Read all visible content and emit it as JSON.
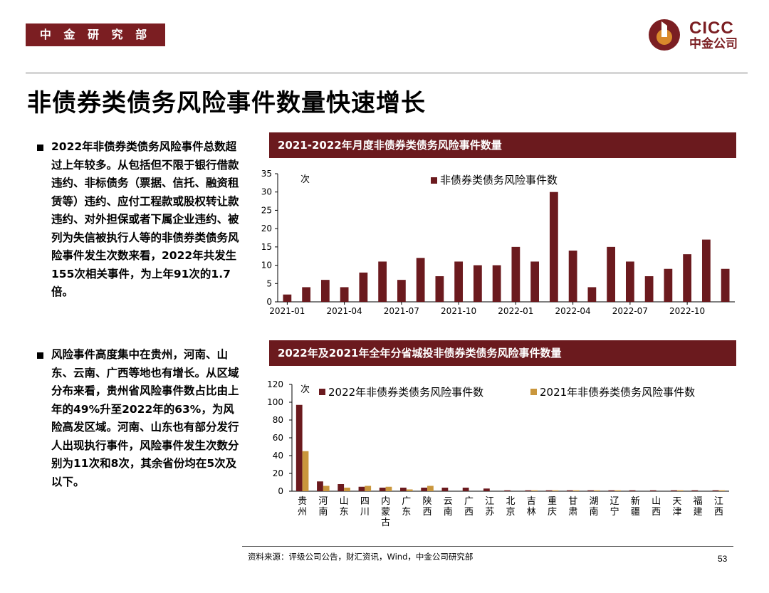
{
  "header": {
    "badge": "中 金 研 究 部",
    "logo_en": "CICC",
    "logo_cn": "中金公司"
  },
  "colors": {
    "brand": "#7b1e22",
    "bar_2022": "#6b1a1e",
    "bar_2021": "#c9963c",
    "logo_orange": "#d9892b"
  },
  "page_title": "非债券类债务风险事件数量快速增长",
  "bullets": [
    "2022年非债券类债务风险事件总数超过上年较多。从包括但不限于银行借款违约、非标债务（票据、信托、融资租赁等）违约、应付工程款或股权转让款违约、对外担保或者下属企业违约、被列为失信被执行人等的非债券类债务风险事件发生次数来看，2022年共发生155次相关事件，为上年91次的1.7倍。",
    "风险事件高度集中在贵州，河南、山东、云南、广西等地也有增长。从区域分布来看，贵州省风险事件数占比由上年的49%升至2022年的63%，为风险高发区域。河南、山东也有部分发行人出现执行事件，风险事件发生次数分别为11次和8次，其余省份均在5次及以下。"
  ],
  "chart_data": [
    {
      "type": "bar",
      "title": "2021-2022年月度非债券类债务风险事件数量",
      "ylabel": "次",
      "ylim": [
        0,
        35
      ],
      "yticks": [
        "0",
        "5",
        "10",
        "15",
        "20",
        "25",
        "30",
        "35"
      ],
      "xtick_labels": [
        "2021-01",
        "2021-04",
        "2021-07",
        "2021-10",
        "2022-01",
        "2022-04",
        "2022-07",
        "2022-10"
      ],
      "categories": [
        "2021-01",
        "2021-02",
        "2021-03",
        "2021-04",
        "2021-05",
        "2021-06",
        "2021-07",
        "2021-08",
        "2021-09",
        "2021-10",
        "2021-11",
        "2021-12",
        "2022-01",
        "2022-02",
        "2022-03",
        "2022-04",
        "2022-05",
        "2022-06",
        "2022-07",
        "2022-08",
        "2022-09",
        "2022-10",
        "2022-11",
        "2022-12"
      ],
      "series": [
        {
          "name": "非债券类债务风险事件数",
          "values": [
            2,
            4,
            6,
            4,
            8,
            11,
            6,
            12,
            7,
            11,
            10,
            10,
            15,
            11,
            30,
            14,
            4,
            15,
            11,
            7,
            9,
            13,
            17,
            9
          ]
        }
      ],
      "legend": "top"
    },
    {
      "type": "bar",
      "title": "2022年及2021年全年分省城投非债券类债务风险事件数量",
      "ylabel": "次",
      "ylim": [
        0,
        120
      ],
      "yticks": [
        "0",
        "20",
        "40",
        "60",
        "80",
        "100",
        "120"
      ],
      "categories": [
        "贵州",
        "河南",
        "山东",
        "四川",
        "内蒙古",
        "广东",
        "陕西",
        "云南",
        "广西",
        "江苏",
        "北京",
        "吉林",
        "重庆",
        "甘肃",
        "湖南",
        "辽宁",
        "新疆",
        "山西",
        "天津",
        "福建",
        "江西"
      ],
      "series": [
        {
          "name": "2022年非债券类债务风险事件数",
          "values": [
            97,
            11,
            8,
            5,
            4,
            4,
            4,
            4,
            4,
            3,
            1,
            1,
            1,
            1,
            1,
            1,
            1,
            1,
            1,
            1,
            1
          ]
        },
        {
          "name": "2021年非债券类债务风险事件数",
          "values": [
            45,
            6,
            4,
            6,
            5,
            2,
            6,
            0,
            0,
            0,
            0,
            1,
            1,
            1,
            1,
            1,
            0,
            0,
            1,
            0,
            1
          ]
        }
      ],
      "legend": "top"
    }
  ],
  "footer": {
    "source": "资料来源：评级公司公告，财汇资讯，Wind，中金公司研究部",
    "page": "53"
  }
}
